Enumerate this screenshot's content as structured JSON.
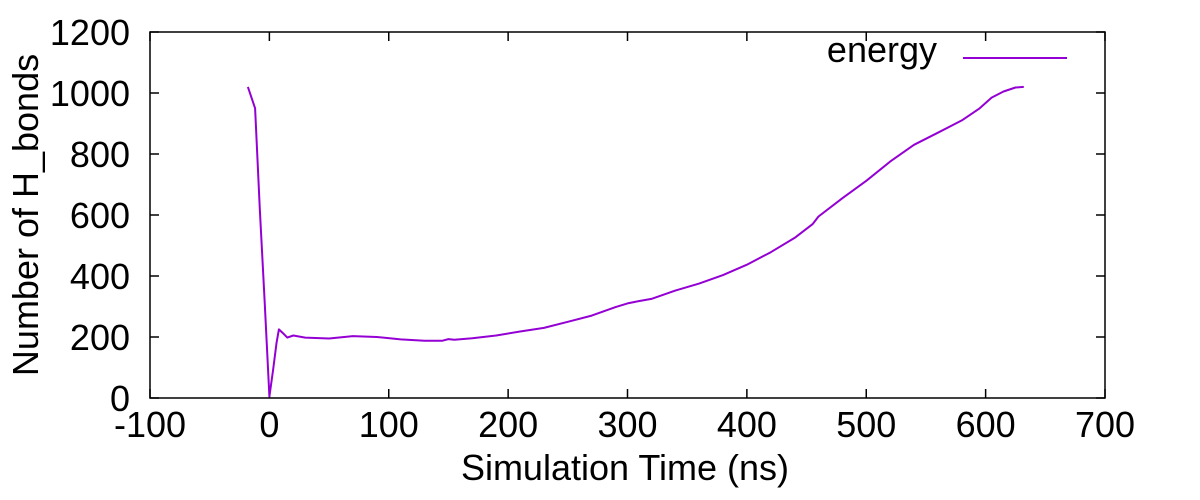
{
  "chart_data": {
    "type": "line",
    "title": "",
    "xlabel": "Simulation Time (ns)",
    "ylabel": "Number of H_bonds",
    "xlim": [
      -100,
      700
    ],
    "ylim": [
      0,
      1200
    ],
    "x_ticks": [
      -100,
      0,
      100,
      200,
      300,
      400,
      500,
      600,
      700
    ],
    "y_ticks": [
      0,
      200,
      400,
      600,
      800,
      1000,
      1200
    ],
    "x_tick_labels": [
      "-100",
      "0",
      "100",
      "200",
      "300",
      "400",
      "500",
      "600",
      "700"
    ],
    "y_tick_labels": [
      "0",
      "200",
      "400",
      "600",
      "800",
      "1000",
      "1200"
    ],
    "grid": false,
    "legend": {
      "position": "top-right"
    },
    "series": [
      {
        "name": "energy",
        "color": "#9400d3",
        "x": [
          -18,
          -12,
          -8,
          -4,
          0,
          3,
          6,
          8,
          12,
          15,
          20,
          30,
          50,
          70,
          90,
          110,
          130,
          145,
          150,
          155,
          170,
          190,
          210,
          230,
          250,
          270,
          290,
          300,
          310,
          320,
          340,
          360,
          380,
          400,
          420,
          440,
          455,
          460,
          480,
          500,
          520,
          540,
          560,
          580,
          595,
          605,
          615,
          625,
          632
        ],
        "y": [
          1020,
          950,
          620,
          320,
          5,
          90,
          180,
          225,
          210,
          198,
          205,
          198,
          195,
          203,
          200,
          192,
          188,
          188,
          193,
          191,
          196,
          205,
          218,
          230,
          250,
          270,
          298,
          310,
          318,
          325,
          352,
          375,
          403,
          437,
          478,
          525,
          570,
          595,
          655,
          712,
          775,
          830,
          870,
          910,
          950,
          985,
          1005,
          1018,
          1020
        ]
      }
    ]
  }
}
